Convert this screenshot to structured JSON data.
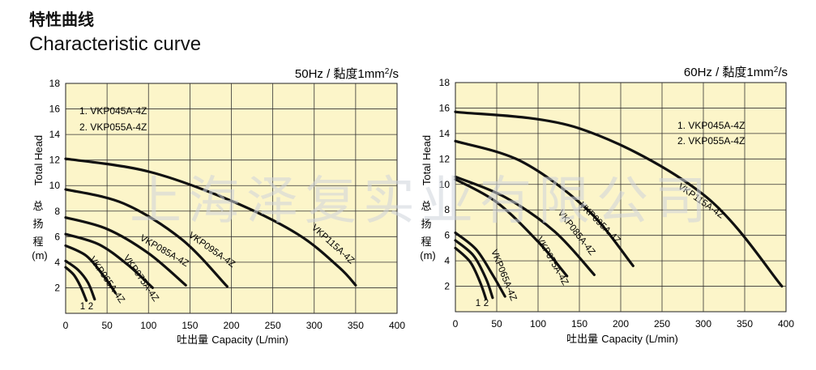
{
  "header": {
    "title_cn": "特性曲线",
    "title_en": "Characteristic curve"
  },
  "watermark": "上海泽复实业有限公司",
  "chart_data": [
    {
      "type": "line",
      "title": "50Hz / 黏度1mm²/s",
      "title_main": "50Hz / 黏度1mm",
      "title_sup": "2",
      "title_end": "/s",
      "xlabel_cn": "吐出量",
      "xlabel_en": "Capacity (L/min)",
      "ylabel_en": "Total Head",
      "ylabel_cn": [
        "总",
        "扬",
        "程"
      ],
      "ylabel_unit": "(m)",
      "xlim": [
        0,
        400
      ],
      "ylim": [
        0,
        18
      ],
      "xticks": [
        0,
        50,
        100,
        150,
        200,
        250,
        300,
        350,
        400
      ],
      "yticks": [
        2,
        4,
        6,
        8,
        10,
        12,
        14,
        16,
        18
      ],
      "legend": [
        "1. VKP045A-4Z",
        "2. VKP055A-4Z"
      ],
      "series": [
        {
          "name": "1",
          "label": "1",
          "x": [
            0,
            10,
            18,
            25
          ],
          "y": [
            3.6,
            3.0,
            2.1,
            1.0
          ]
        },
        {
          "name": "2",
          "label": "2",
          "x": [
            0,
            15,
            27,
            35
          ],
          "y": [
            4.1,
            3.4,
            2.4,
            1.1
          ]
        },
        {
          "name": "VKP065A-4Z",
          "label": "VKP065A-4Z",
          "x": [
            0,
            25,
            45,
            60
          ],
          "y": [
            5.3,
            4.5,
            3.0,
            1.6
          ]
        },
        {
          "name": "VKP075A-4Z",
          "label": "VKP075A-4Z",
          "x": [
            0,
            40,
            75,
            105
          ],
          "y": [
            6.2,
            5.4,
            3.8,
            2.0
          ]
        },
        {
          "name": "VKP085A-4Z",
          "label": "VKP085A-4Z",
          "x": [
            0,
            50,
            100,
            145
          ],
          "y": [
            7.5,
            6.6,
            4.7,
            2.2
          ]
        },
        {
          "name": "VKP095A-4Z",
          "label": "VKP095A-4Z",
          "x": [
            0,
            70,
            140,
            195
          ],
          "y": [
            9.7,
            8.6,
            5.8,
            2.1
          ]
        },
        {
          "name": "VKP115A-4Z",
          "label": "VKP115A-4Z",
          "x": [
            0,
            100,
            200,
            280,
            330,
            350
          ],
          "y": [
            12.1,
            11.1,
            8.8,
            6.2,
            3.6,
            2.2
          ]
        }
      ]
    },
    {
      "type": "line",
      "title": "60Hz / 黏度1mm²/s",
      "title_main": "60Hz / 黏度1mm",
      "title_sup": "2",
      "title_end": "/s",
      "xlabel_cn": "吐出量",
      "xlabel_en": "Capacity (L/min)",
      "ylabel_en": "Total Head",
      "ylabel_cn": [
        "总",
        "扬",
        "程"
      ],
      "ylabel_unit": "(m)",
      "xlim": [
        0,
        400
      ],
      "ylim": [
        0,
        18
      ],
      "xticks": [
        0,
        50,
        100,
        150,
        200,
        250,
        300,
        350,
        400
      ],
      "yticks": [
        2,
        4,
        6,
        8,
        10,
        12,
        14,
        16,
        18
      ],
      "legend": [
        "1. VKP045A-4Z",
        "2. VKP055A-4Z"
      ],
      "series": [
        {
          "name": "1",
          "label": "1",
          "x": [
            0,
            18,
            30,
            37
          ],
          "y": [
            5.0,
            3.9,
            2.3,
            1.0
          ]
        },
        {
          "name": "2",
          "label": "2",
          "x": [
            0,
            22,
            37,
            45
          ],
          "y": [
            5.6,
            4.4,
            2.6,
            1.1
          ]
        },
        {
          "name": "VKP065A-4Z",
          "label": "VKP065A-4Z",
          "x": [
            0,
            25,
            45,
            60
          ],
          "y": [
            6.2,
            4.9,
            2.9,
            1.2
          ]
        },
        {
          "name": "VKP075A-4Z",
          "label": "VKP075A-4Z",
          "x": [
            0,
            50,
            100,
            135
          ],
          "y": [
            10.4,
            8.6,
            5.5,
            2.8
          ]
        },
        {
          "name": "VKP085A-4Z",
          "label": "VKP085A-4Z",
          "x": [
            0,
            60,
            120,
            168
          ],
          "y": [
            10.6,
            9.0,
            6.3,
            2.9
          ]
        },
        {
          "name": "VKP095A-4Z",
          "label": "VKP095A-4Z",
          "x": [
            0,
            80,
            160,
            215
          ],
          "y": [
            13.4,
            11.8,
            8.0,
            3.6
          ]
        },
        {
          "name": "VKP115A-4Z",
          "label": "VKP115A-4Z",
          "x": [
            0,
            150,
            300,
            395
          ],
          "y": [
            15.7,
            14.4,
            9.2,
            2.0
          ]
        }
      ]
    }
  ]
}
